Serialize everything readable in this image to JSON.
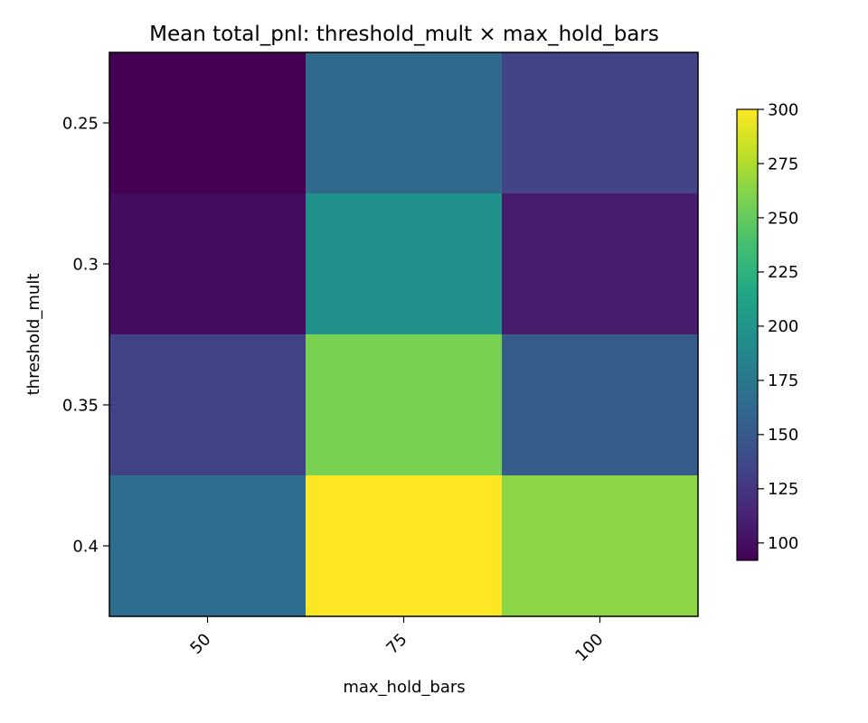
{
  "chart_data": {
    "type": "heatmap",
    "title": "Mean total_pnl: threshold_mult × max_hold_bars",
    "xlabel": "max_hold_bars",
    "ylabel": "threshold_mult",
    "x_categories": [
      "50",
      "75",
      "100"
    ],
    "y_categories": [
      "0.25",
      "0.3",
      "0.35",
      "0.4"
    ],
    "values": [
      [
        92,
        164,
        134
      ],
      [
        98,
        196,
        108
      ],
      [
        132,
        258,
        152
      ],
      [
        166,
        300,
        264
      ]
    ],
    "colorbar": {
      "vmin": 92,
      "vmax": 300,
      "ticks": [
        100,
        125,
        150,
        175,
        200,
        225,
        250,
        275,
        300
      ],
      "colormap": "viridis"
    },
    "grid": false
  }
}
